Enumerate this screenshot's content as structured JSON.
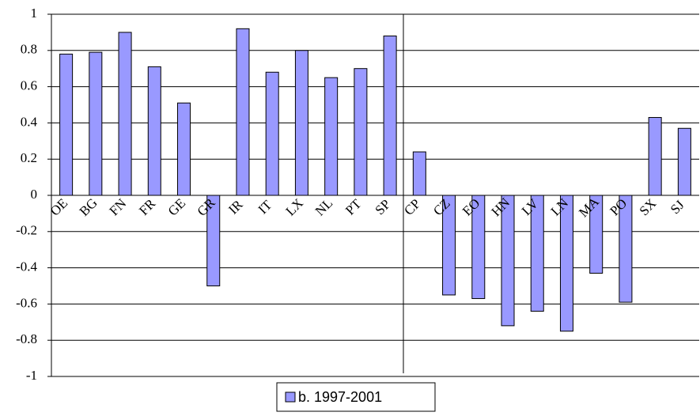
{
  "chart_data": {
    "type": "bar",
    "categories": [
      "OE",
      "BG",
      "FN",
      "FR",
      "GE",
      "GR",
      "IR",
      "IT",
      "LX",
      "NL",
      "PT",
      "SP",
      "CP",
      "CZ",
      "EO",
      "HN",
      "LV",
      "LN",
      "MA",
      "PO",
      "SX",
      "SJ"
    ],
    "series": [
      {
        "name": "b. 1997-2001",
        "color": "#9999ff",
        "values": [
          0.78,
          0.79,
          0.9,
          0.71,
          0.51,
          -0.5,
          0.92,
          0.68,
          0.8,
          0.65,
          0.7,
          0.88,
          0.24,
          -0.55,
          -0.57,
          -0.72,
          -0.64,
          -0.75,
          -0.43,
          -0.59,
          0.43,
          0.37
        ]
      }
    ],
    "ylim": [
      -1,
      1
    ],
    "yticks": [
      -1,
      -0.8,
      -0.6,
      -0.4,
      -0.2,
      0,
      0.2,
      0.4,
      0.6,
      0.8,
      1
    ],
    "grid": true,
    "legend": "bottom"
  }
}
